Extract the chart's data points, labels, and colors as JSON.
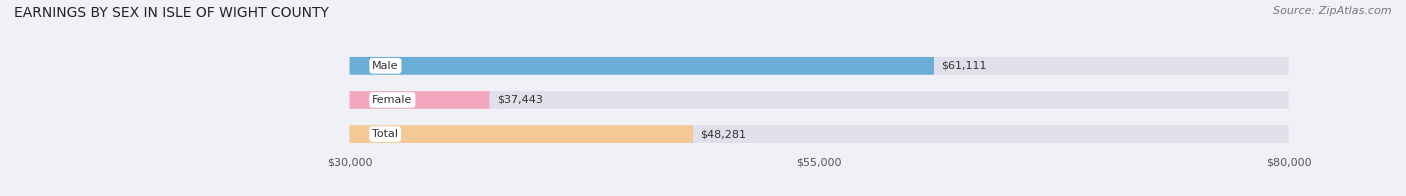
{
  "title": "EARNINGS BY SEX IN ISLE OF WIGHT COUNTY",
  "source": "Source: ZipAtlas.com",
  "categories": [
    "Male",
    "Female",
    "Total"
  ],
  "values": [
    61111,
    37443,
    48281
  ],
  "bar_colors": [
    "#6aaed6",
    "#f4a8c0",
    "#f5c996"
  ],
  "bar_bg_color": "#e0e0ea",
  "x_min": 30000,
  "x_max": 80000,
  "x_ticks": [
    30000,
    55000,
    80000
  ],
  "x_tick_labels": [
    "$30,000",
    "$55,000",
    "$80,000"
  ],
  "value_labels": [
    "$61,111",
    "$37,443",
    "$48,281"
  ],
  "title_fontsize": 10,
  "source_fontsize": 8,
  "bar_label_fontsize": 8,
  "category_fontsize": 8,
  "tick_fontsize": 8,
  "background_color": "#f0f0f7"
}
